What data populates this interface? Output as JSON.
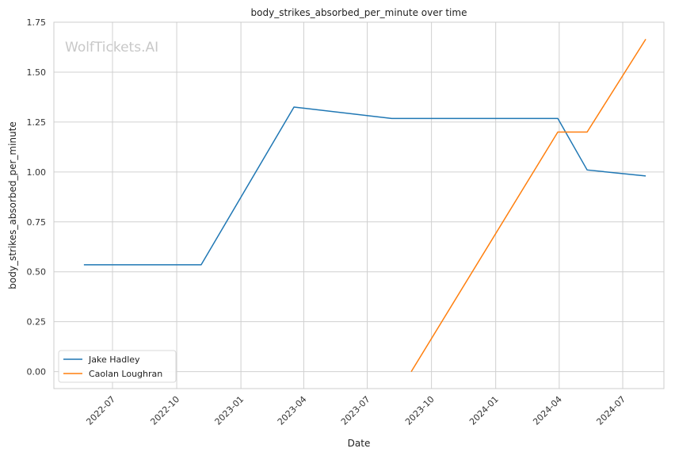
{
  "chart_data": {
    "type": "line",
    "title": "body_strikes_absorbed_per_minute over time",
    "xlabel": "Date",
    "ylabel": "body_strikes_absorbed_per_minute",
    "watermark": "WolfTickets.AI",
    "ylim": [
      -0.085,
      1.75
    ],
    "xlim": [
      "2022-04-08",
      "2024-08-29"
    ],
    "y_ticks": [
      0.0,
      0.25,
      0.5,
      0.75,
      1.0,
      1.25,
      1.5,
      1.75
    ],
    "y_tick_labels": [
      "0.00",
      "0.25",
      "0.50",
      "0.75",
      "1.00",
      "1.25",
      "1.50",
      "1.75"
    ],
    "x_ticks": [
      "2022-07-01",
      "2022-10-01",
      "2023-01-01",
      "2023-04-01",
      "2023-07-01",
      "2023-10-01",
      "2024-01-01",
      "2024-04-01",
      "2024-07-01"
    ],
    "x_tick_labels": [
      "2022-07",
      "2022-10",
      "2023-01",
      "2023-04",
      "2023-07",
      "2023-10",
      "2024-01",
      "2024-04",
      "2024-07"
    ],
    "grid": true,
    "legend_position": "bottom-left",
    "series": [
      {
        "name": "Jake Hadley",
        "color": "#1f77b4",
        "x": [
          "2022-05-21",
          "2022-11-05",
          "2023-03-18",
          "2023-08-05",
          "2024-03-30",
          "2024-05-11",
          "2024-08-03"
        ],
        "y": [
          0.535,
          0.535,
          1.325,
          1.268,
          1.268,
          1.01,
          0.98
        ]
      },
      {
        "name": "Caolan Loughran",
        "color": "#ff7f0e",
        "x": [
          "2023-09-02",
          "2024-03-30",
          "2024-05-11",
          "2024-08-03"
        ],
        "y": [
          0.0,
          1.2,
          1.2,
          1.665
        ]
      }
    ]
  }
}
